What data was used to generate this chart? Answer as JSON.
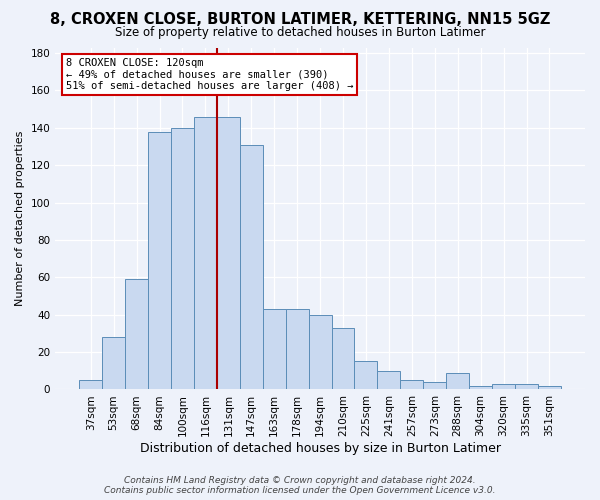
{
  "title": "8, CROXEN CLOSE, BURTON LATIMER, KETTERING, NN15 5GZ",
  "subtitle": "Size of property relative to detached houses in Burton Latimer",
  "xlabel": "Distribution of detached houses by size in Burton Latimer",
  "ylabel": "Number of detached properties",
  "bar_labels": [
    "37sqm",
    "53sqm",
    "68sqm",
    "84sqm",
    "100sqm",
    "116sqm",
    "131sqm",
    "147sqm",
    "163sqm",
    "178sqm",
    "194sqm",
    "210sqm",
    "225sqm",
    "241sqm",
    "257sqm",
    "273sqm",
    "288sqm",
    "304sqm",
    "320sqm",
    "335sqm",
    "351sqm"
  ],
  "bar_values": [
    5,
    28,
    59,
    138,
    140,
    146,
    146,
    131,
    43,
    43,
    40,
    33,
    15,
    10,
    5,
    4,
    9,
    2,
    3,
    3,
    2
  ],
  "bar_color": "#c9d9f0",
  "bar_edge_color": "#5b8db8",
  "vline_x_idx": 5,
  "vline_color": "#aa0000",
  "annotation_title": "8 CROXEN CLOSE: 120sqm",
  "annotation_line1": "← 49% of detached houses are smaller (390)",
  "annotation_line2": "51% of semi-detached houses are larger (408) →",
  "annotation_box_color": "#ffffff",
  "annotation_box_edge": "#cc0000",
  "ylim": [
    0,
    183
  ],
  "yticks": [
    0,
    20,
    40,
    60,
    80,
    100,
    120,
    140,
    160,
    180
  ],
  "footer_line1": "Contains HM Land Registry data © Crown copyright and database right 2024.",
  "footer_line2": "Contains public sector information licensed under the Open Government Licence v3.0.",
  "bg_color": "#eef2fa",
  "grid_color": "#ffffff",
  "title_fontsize": 10.5,
  "subtitle_fontsize": 8.5,
  "xlabel_fontsize": 9,
  "ylabel_fontsize": 8,
  "tick_fontsize": 7.5,
  "footer_fontsize": 6.5
}
